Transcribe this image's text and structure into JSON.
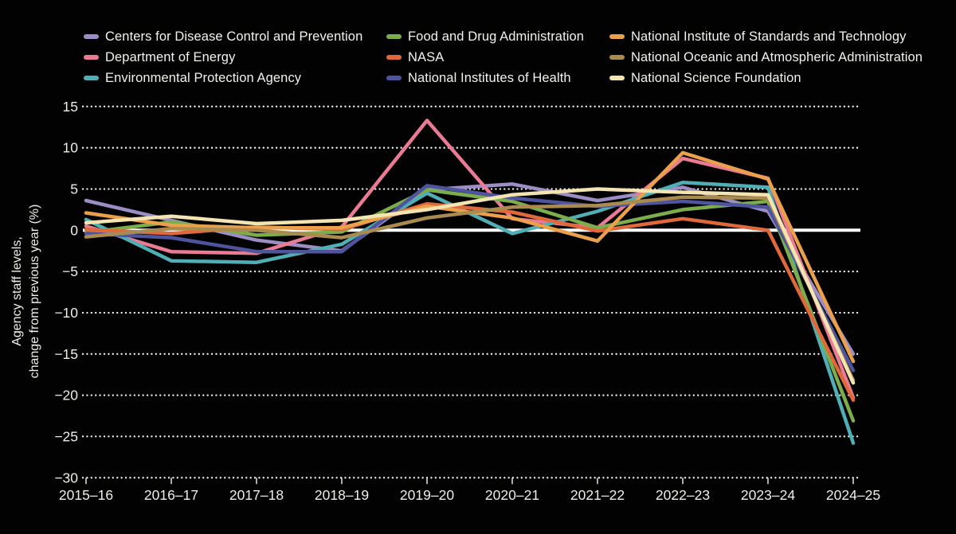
{
  "figure": {
    "background": "#020202",
    "text_color": "#f2f2ef",
    "ylabel_line1": "Agency staff levels,",
    "ylabel_line2": "change from previous year (%)"
  },
  "chart_data": {
    "type": "line",
    "title": "",
    "xlabel": "",
    "ylabel": "Agency staff levels, change from previous year (%)",
    "ylim": [
      -30,
      15
    ],
    "y_ticks": [
      15,
      10,
      5,
      0,
      -5,
      -10,
      -15,
      -20,
      -25,
      -30
    ],
    "grid": "horizontal dotted white gridlines; solid white line at zero",
    "legend_position": "top, three columns",
    "categories": [
      "2015–16",
      "2016–17",
      "2017–18",
      "2018–19",
      "2019–20",
      "2020–21",
      "2021–22",
      "2022–23",
      "2023–24",
      "2024–25"
    ],
    "series": [
      {
        "name": "Centers for Disease Control and Prevention",
        "color": "#9c8dc4",
        "values": [
          3.6,
          1.2,
          -1.2,
          -2.5,
          4.9,
          5.6,
          3.6,
          5.2,
          2.3,
          -15.0
        ]
      },
      {
        "name": "Department of Energy",
        "color": "#e97b94",
        "values": [
          0.5,
          -2.6,
          -2.8,
          0.4,
          13.3,
          1.4,
          0.3,
          8.7,
          6.3,
          -20.3
        ]
      },
      {
        "name": "Environmental Protection Agency",
        "color": "#4fafb4",
        "values": [
          1.3,
          -3.7,
          -3.9,
          -1.7,
          4.5,
          -0.4,
          2.3,
          5.8,
          5.2,
          -25.8
        ]
      },
      {
        "name": "Food and Drug Administration",
        "color": "#7cad4d",
        "values": [
          -0.3,
          1.0,
          -0.6,
          -0.2,
          4.9,
          3.5,
          0.3,
          2.5,
          3.5,
          -23.1
        ]
      },
      {
        "name": "NASA",
        "color": "#e0693c",
        "values": [
          0.1,
          -0.4,
          0.4,
          0.1,
          3.2,
          2.2,
          -0.1,
          1.4,
          0.0,
          -20.6
        ]
      },
      {
        "name": "National Institutes of Health",
        "color": "#4f549e",
        "values": [
          -0.4,
          -0.9,
          -2.6,
          -2.6,
          5.4,
          3.9,
          2.9,
          3.5,
          2.8,
          -17.0
        ]
      },
      {
        "name": "National Institute of Standards and Technology",
        "color": "#eba04b",
        "values": [
          2.1,
          0.6,
          0.3,
          0.3,
          2.9,
          1.5,
          -1.3,
          9.4,
          6.2,
          -15.9
        ]
      },
      {
        "name": "National Oceanic and Atmospheric Administration",
        "color": "#a98b50",
        "values": [
          -0.8,
          0.2,
          0.0,
          -0.9,
          1.5,
          2.8,
          3.0,
          4.0,
          3.9,
          -18.2
        ]
      },
      {
        "name": "National Science Foundation",
        "color": "#f3e4b2",
        "values": [
          0.9,
          1.7,
          0.8,
          1.2,
          2.5,
          4.3,
          5.0,
          4.6,
          4.3,
          -18.5
        ]
      }
    ]
  }
}
